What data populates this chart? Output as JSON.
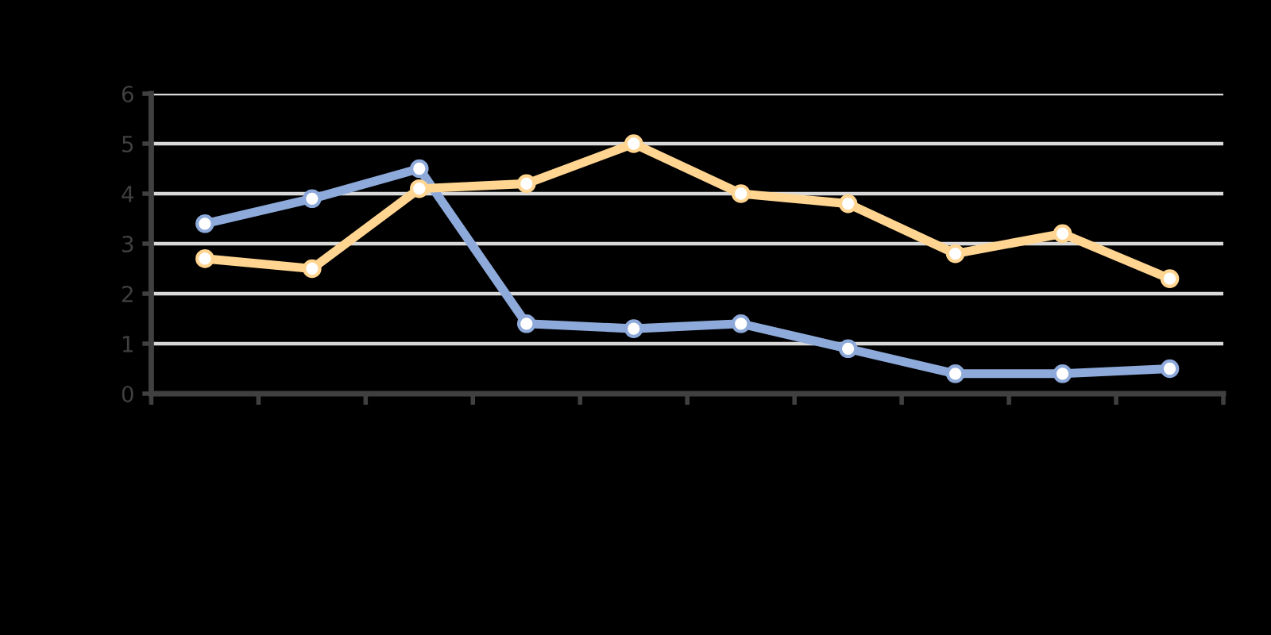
{
  "chart_data": {
    "type": "line",
    "categories": [
      null,
      null,
      null,
      null,
      null,
      null,
      null,
      null,
      null,
      null
    ],
    "series": [
      {
        "color": "#8eaadb",
        "values": [
          3.4,
          3.9,
          4.5,
          1.4,
          1.3,
          1.4,
          0.9,
          0.4,
          0.4,
          0.5
        ]
      },
      {
        "color": "#ffd591",
        "values": [
          2.7,
          2.5,
          4.1,
          4.2,
          5.0,
          4.0,
          3.8,
          2.8,
          3.2,
          2.3
        ]
      }
    ],
    "ylim": [
      0,
      6
    ],
    "yticks": [
      0,
      1,
      2,
      3,
      4,
      5,
      6
    ],
    "grid": "y",
    "marker": "circle",
    "line_style": "solid"
  }
}
